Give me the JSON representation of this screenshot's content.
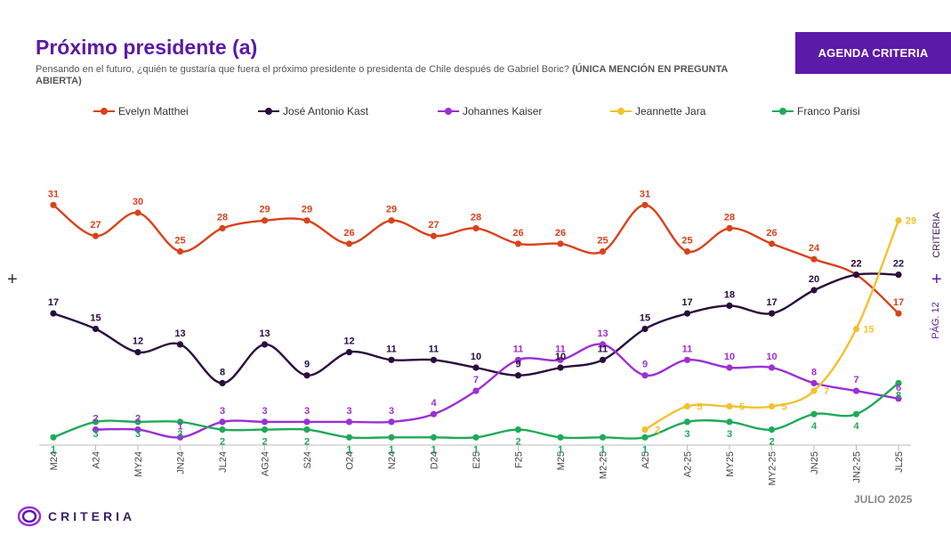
{
  "header": {
    "title": "Próximo presidente (a)",
    "subtitle_main": "Pensando en el futuro, ¿quién te gustaría que fuera el próximo presidente o presidenta de Chile después de Gabriel  Boric? ",
    "subtitle_bold": "(ÚNICA MENCIÓN EN PREGUNTA ABIERTA)",
    "badge": "AGENDA CRITERIA"
  },
  "side": {
    "left_plus": "+",
    "right_plus": "+",
    "page": "PÁG. 12",
    "brand": "CRITERIA"
  },
  "footer": {
    "logo_text": "CRITERIA",
    "date": "JULIO 2025"
  },
  "chart_data": {
    "type": "line",
    "categories": [
      "M24",
      "A24",
      "MY24",
      "JN24",
      "JL24",
      "AG24",
      "S24",
      "O24",
      "N24",
      "D24",
      "E25",
      "F25",
      "M25",
      "M2-25",
      "A25",
      "A2-25",
      "MY25",
      "MY2-25",
      "JN25",
      "JN2-25",
      "JL25"
    ],
    "series": [
      {
        "name": "Evelyn Matthei",
        "color": "#d9421b",
        "values": [
          31,
          27,
          30,
          25,
          28,
          29,
          29,
          26,
          29,
          27,
          28,
          26,
          26,
          25,
          31,
          25,
          28,
          26,
          24,
          22,
          17
        ]
      },
      {
        "name": "José Antonio Kast",
        "color": "#2a0c3d",
        "values": [
          17,
          15,
          12,
          13,
          8,
          13,
          9,
          12,
          11,
          11,
          10,
          9,
          10,
          11,
          15,
          17,
          18,
          17,
          20,
          22,
          22
        ]
      },
      {
        "name": "Johannes Kaiser",
        "color": "#9b2fd6",
        "values": [
          null,
          2,
          2,
          1,
          3,
          3,
          3,
          3,
          3,
          4,
          7,
          11,
          11,
          13,
          9,
          11,
          10,
          10,
          8,
          7,
          6
        ]
      },
      {
        "name": "Jeannette Jara",
        "color": "#f2c12e",
        "values": [
          null,
          null,
          null,
          null,
          null,
          null,
          null,
          null,
          null,
          null,
          null,
          null,
          null,
          null,
          2,
          5,
          5,
          5,
          7,
          15,
          29
        ]
      },
      {
        "name": "Franco Parisi",
        "color": "#1faa59",
        "values": [
          1,
          3,
          3,
          3,
          2,
          2,
          2,
          1,
          1,
          1,
          1,
          2,
          1,
          1,
          1,
          3,
          3,
          2,
          4,
          4,
          8
        ]
      }
    ]
  }
}
